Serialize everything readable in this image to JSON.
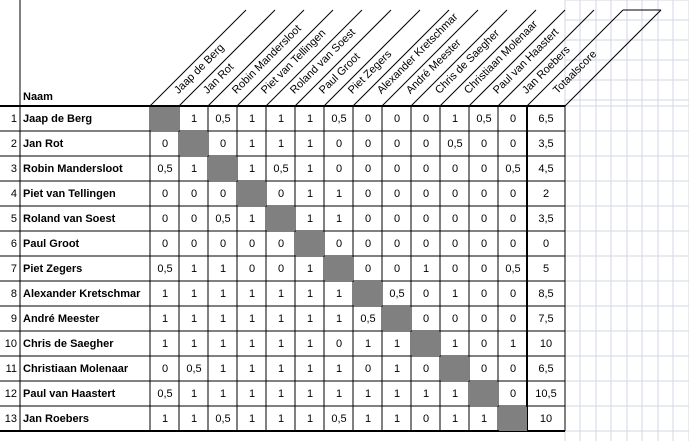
{
  "name_header": "Naam",
  "total_header": "Totaalscore",
  "players": [
    {
      "num": "1",
      "name": "Jaap de Berg",
      "scores": [
        "",
        "1",
        "0,5",
        "1",
        "1",
        "1",
        "0,5",
        "0",
        "0",
        "0",
        "1",
        "0,5",
        "0"
      ],
      "total": "6,5"
    },
    {
      "num": "2",
      "name": "Jan Rot",
      "scores": [
        "0",
        "",
        "0",
        "1",
        "1",
        "1",
        "0",
        "0",
        "0",
        "0",
        "0,5",
        "0",
        "0"
      ],
      "total": "3,5"
    },
    {
      "num": "3",
      "name": "Robin Mandersloot",
      "scores": [
        "0,5",
        "1",
        "",
        "1",
        "0,5",
        "1",
        "0",
        "0",
        "0",
        "0",
        "0",
        "0",
        "0,5"
      ],
      "total": "4,5"
    },
    {
      "num": "4",
      "name": "Piet van Tellingen",
      "scores": [
        "0",
        "0",
        "0",
        "",
        "0",
        "1",
        "1",
        "0",
        "0",
        "0",
        "0",
        "0",
        "0"
      ],
      "total": "2"
    },
    {
      "num": "5",
      "name": "Roland van Soest",
      "scores": [
        "0",
        "0",
        "0,5",
        "1",
        "",
        "1",
        "1",
        "0",
        "0",
        "0",
        "0",
        "0",
        "0"
      ],
      "total": "3,5"
    },
    {
      "num": "6",
      "name": "Paul Groot",
      "scores": [
        "0",
        "0",
        "0",
        "0",
        "0",
        "",
        "0",
        "0",
        "0",
        "0",
        "0",
        "0",
        "0"
      ],
      "total": "0"
    },
    {
      "num": "7",
      "name": "Piet Zegers",
      "scores": [
        "0,5",
        "1",
        "1",
        "0",
        "0",
        "1",
        "",
        "0",
        "0",
        "1",
        "0",
        "0",
        "0,5"
      ],
      "total": "5"
    },
    {
      "num": "8",
      "name": "Alexander Kretschmar",
      "scores": [
        "1",
        "1",
        "1",
        "1",
        "1",
        "1",
        "1",
        "",
        "0,5",
        "0",
        "1",
        "0",
        "0"
      ],
      "total": "8,5"
    },
    {
      "num": "9",
      "name": "André Meester",
      "scores": [
        "1",
        "1",
        "1",
        "1",
        "1",
        "1",
        "1",
        "0,5",
        "",
        "0",
        "0",
        "0",
        "0"
      ],
      "total": "7,5"
    },
    {
      "num": "10",
      "name": "Chris de Saegher",
      "scores": [
        "1",
        "1",
        "1",
        "1",
        "1",
        "1",
        "0",
        "1",
        "1",
        "",
        "1",
        "0",
        "1"
      ],
      "total": "10"
    },
    {
      "num": "11",
      "name": "Christiaan Molenaar",
      "scores": [
        "0",
        "0,5",
        "1",
        "1",
        "1",
        "1",
        "1",
        "0",
        "1",
        "0",
        "",
        "0",
        "0"
      ],
      "total": "6,5"
    },
    {
      "num": "12",
      "name": "Paul van Haastert",
      "scores": [
        "0,5",
        "1",
        "1",
        "1",
        "1",
        "1",
        "1",
        "1",
        "1",
        "1",
        "1",
        "",
        "0"
      ],
      "total": "10,5"
    },
    {
      "num": "13",
      "name": "Jan Roebers",
      "scores": [
        "1",
        "1",
        "0,5",
        "1",
        "1",
        "1",
        "0,5",
        "1",
        "1",
        "0",
        "1",
        "1",
        ""
      ],
      "total": "10"
    }
  ]
}
